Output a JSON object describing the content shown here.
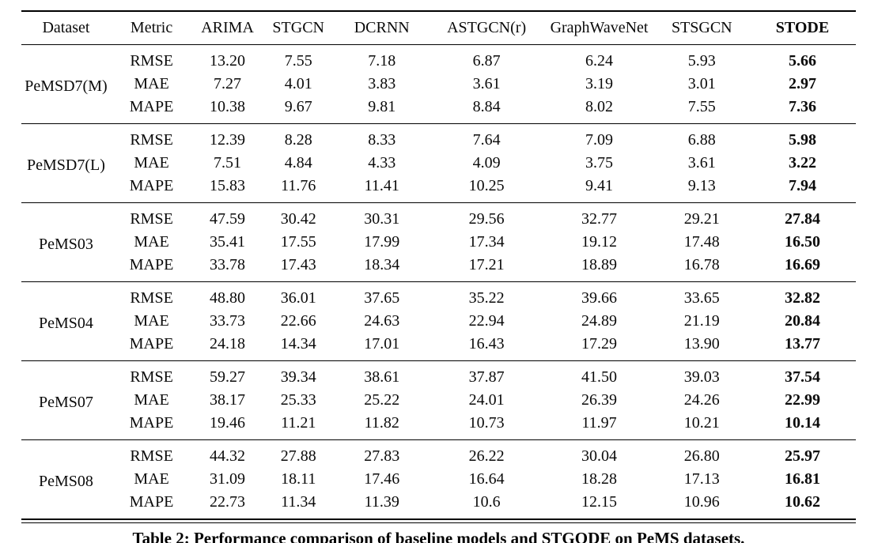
{
  "table": {
    "columns": [
      "Dataset",
      "Metric",
      "ARIMA",
      "STGCN",
      "DCRNN",
      "ASTGCN(r)",
      "GraphWaveNet",
      "STSGCN",
      "STODE"
    ],
    "groups": [
      {
        "dataset": "PeMSD7(M)",
        "rows": [
          {
            "metric": "RMSE",
            "values": [
              "13.20",
              "7.55",
              "7.18",
              "6.87",
              "6.24",
              "5.93",
              "5.66"
            ]
          },
          {
            "metric": "MAE",
            "values": [
              "7.27",
              "4.01",
              "3.83",
              "3.61",
              "3.19",
              "3.01",
              "2.97"
            ]
          },
          {
            "metric": "MAPE",
            "values": [
              "10.38",
              "9.67",
              "9.81",
              "8.84",
              "8.02",
              "7.55",
              "7.36"
            ]
          }
        ]
      },
      {
        "dataset": "PeMSD7(L)",
        "rows": [
          {
            "metric": "RMSE",
            "values": [
              "12.39",
              "8.28",
              "8.33",
              "7.64",
              "7.09",
              "6.88",
              "5.98"
            ]
          },
          {
            "metric": "MAE",
            "values": [
              "7.51",
              "4.84",
              "4.33",
              "4.09",
              "3.75",
              "3.61",
              "3.22"
            ]
          },
          {
            "metric": "MAPE",
            "values": [
              "15.83",
              "11.76",
              "11.41",
              "10.25",
              "9.41",
              "9.13",
              "7.94"
            ]
          }
        ]
      },
      {
        "dataset": "PeMS03",
        "rows": [
          {
            "metric": "RMSE",
            "values": [
              "47.59",
              "30.42",
              "30.31",
              "29.56",
              "32.77",
              "29.21",
              "27.84"
            ]
          },
          {
            "metric": "MAE",
            "values": [
              "35.41",
              "17.55",
              "17.99",
              "17.34",
              "19.12",
              "17.48",
              "16.50"
            ]
          },
          {
            "metric": "MAPE",
            "values": [
              "33.78",
              "17.43",
              "18.34",
              "17.21",
              "18.89",
              "16.78",
              "16.69"
            ]
          }
        ]
      },
      {
        "dataset": "PeMS04",
        "rows": [
          {
            "metric": "RMSE",
            "values": [
              "48.80",
              "36.01",
              "37.65",
              "35.22",
              "39.66",
              "33.65",
              "32.82"
            ]
          },
          {
            "metric": "MAE",
            "values": [
              "33.73",
              "22.66",
              "24.63",
              "22.94",
              "24.89",
              "21.19",
              "20.84"
            ]
          },
          {
            "metric": "MAPE",
            "values": [
              "24.18",
              "14.34",
              "17.01",
              "16.43",
              "17.29",
              "13.90",
              "13.77"
            ]
          }
        ]
      },
      {
        "dataset": "PeMS07",
        "rows": [
          {
            "metric": "RMSE",
            "values": [
              "59.27",
              "39.34",
              "38.61",
              "37.87",
              "41.50",
              "39.03",
              "37.54"
            ]
          },
          {
            "metric": "MAE",
            "values": [
              "38.17",
              "25.33",
              "25.22",
              "24.01",
              "26.39",
              "24.26",
              "22.99"
            ]
          },
          {
            "metric": "MAPE",
            "values": [
              "19.46",
              "11.21",
              "11.82",
              "10.73",
              "11.97",
              "10.21",
              "10.14"
            ]
          }
        ]
      },
      {
        "dataset": "PeMS08",
        "rows": [
          {
            "metric": "RMSE",
            "values": [
              "44.32",
              "27.88",
              "27.83",
              "26.22",
              "30.04",
              "26.80",
              "25.97"
            ]
          },
          {
            "metric": "MAE",
            "values": [
              "31.09",
              "18.11",
              "17.46",
              "16.64",
              "18.28",
              "17.13",
              "16.81"
            ]
          },
          {
            "metric": "MAPE",
            "values": [
              "22.73",
              "11.34",
              "11.39",
              "10.6",
              "12.15",
              "10.96",
              "10.62"
            ]
          }
        ]
      }
    ]
  },
  "caption": "Table 2: Performance comparison of baseline models and STGODE on PeMS datasets."
}
